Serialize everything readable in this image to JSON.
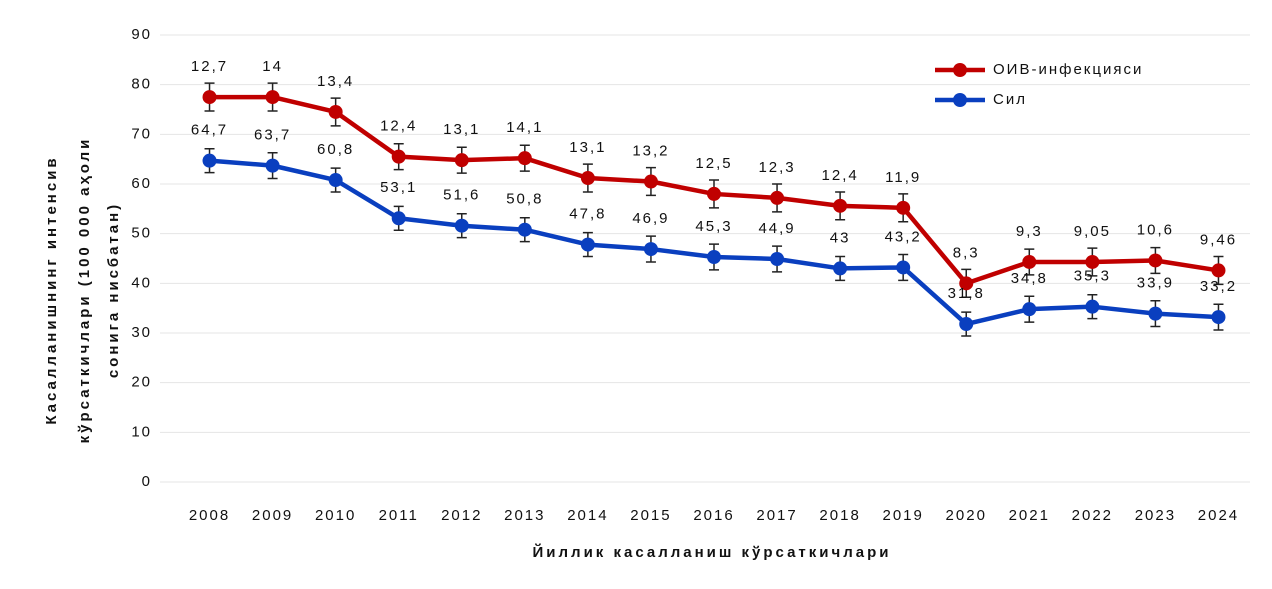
{
  "chart_data": {
    "type": "line",
    "ylabel": [
      "Касалланишнинг интенсив",
      "кўрсаткичлари (100 000 аҳоли",
      "сонига нисбатан)"
    ],
    "xlabel": "Йиллик касалланиш кўрсаткичлари",
    "categories": [
      "2008",
      "2009",
      "2010",
      "2011",
      "2012",
      "2013",
      "2014",
      "2015",
      "2016",
      "2017",
      "2018",
      "2019",
      "2020",
      "2021",
      "2022",
      "2023",
      "2024"
    ],
    "series": [
      {
        "name": "ОИВ-инфекцияси",
        "color": "#c00000",
        "values": [
          77.5,
          77.5,
          74.5,
          65.5,
          64.8,
          65.2,
          61.2,
          60.5,
          58,
          57.2,
          55.6,
          55.2,
          40,
          44.3,
          44.3,
          44.6,
          42.6
        ],
        "errors": [
          2.8,
          2.8,
          2.8,
          2.6,
          2.6,
          2.6,
          2.8,
          2.8,
          2.8,
          2.8,
          2.8,
          2.8,
          2.8,
          2.6,
          2.8,
          2.6,
          2.8
        ],
        "annotations": [
          "12,7",
          "14",
          "13,4",
          "12,4",
          "13,1",
          "14,1",
          "13,1",
          "13,2",
          "12,5",
          "12,3",
          "12,4",
          "11,9",
          "8,3",
          "9,3",
          "9,05",
          "10,6",
          "9,46"
        ]
      },
      {
        "name": "Сил",
        "color": "#0a3fbf",
        "values": [
          64.7,
          63.7,
          60.8,
          53.1,
          51.6,
          50.8,
          47.8,
          46.9,
          45.3,
          44.9,
          43,
          43.2,
          31.8,
          34.8,
          35.3,
          33.9,
          33.2
        ],
        "value_labels": [
          "64,7",
          "63,7",
          "60,8",
          "53,1",
          "51,6",
          "50,8",
          "47,8",
          "46,9",
          "45,3",
          "44,9",
          "43",
          "43,2",
          "31,8",
          "34,8",
          "35,3",
          "33,9",
          "33,2"
        ],
        "errors": [
          2.4,
          2.6,
          2.4,
          2.4,
          2.4,
          2.4,
          2.4,
          2.6,
          2.6,
          2.6,
          2.4,
          2.6,
          2.4,
          2.6,
          2.4,
          2.6,
          2.6
        ]
      }
    ],
    "ylim": [
      0,
      90
    ],
    "yticks": [
      0,
      10,
      20,
      30,
      40,
      50,
      60,
      70,
      80,
      90
    ],
    "grid": true,
    "legend": "top-right"
  }
}
